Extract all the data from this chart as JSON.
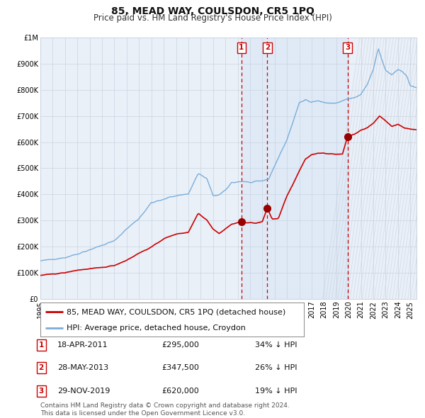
{
  "title": "85, MEAD WAY, COULSDON, CR5 1PQ",
  "subtitle": "Price paid vs. HM Land Registry's House Price Index (HPI)",
  "background_color": "#ffffff",
  "plot_bg_color": "#eaf0f8",
  "grid_color": "#c8d4e0",
  "ylim": [
    0,
    1000000
  ],
  "yticks": [
    0,
    100000,
    200000,
    300000,
    400000,
    500000,
    600000,
    700000,
    800000,
    900000,
    1000000
  ],
  "ytick_labels": [
    "£0",
    "£100K",
    "£200K",
    "£300K",
    "£400K",
    "£500K",
    "£600K",
    "£700K",
    "£800K",
    "£900K",
    "£1M"
  ],
  "xlim_start": 1995.0,
  "xlim_end": 2025.5,
  "xticks": [
    1995,
    1996,
    1997,
    1998,
    1999,
    2000,
    2001,
    2002,
    2003,
    2004,
    2005,
    2006,
    2007,
    2008,
    2009,
    2010,
    2011,
    2012,
    2013,
    2014,
    2015,
    2016,
    2017,
    2018,
    2019,
    2020,
    2021,
    2022,
    2023,
    2024,
    2025
  ],
  "red_line_color": "#cc0000",
  "blue_line_color": "#7aadda",
  "sale_marker_color": "#990000",
  "sale_marker_size": 7,
  "vline_color_red": "#cc0000",
  "shade_color": "#d6e6f5",
  "diag_color": "#c8d0dc",
  "sale_events": [
    {
      "label": "1",
      "year": 2011.3,
      "price": 295000,
      "hpi_pct": "34% ↓ HPI",
      "date_str": "18-APR-2011",
      "price_str": "£295,000"
    },
    {
      "label": "2",
      "year": 2013.4,
      "price": 347500,
      "hpi_pct": "26% ↓ HPI",
      "date_str": "28-MAY-2013",
      "price_str": "£347,500"
    },
    {
      "label": "3",
      "year": 2019.9,
      "price": 620000,
      "hpi_pct": "19% ↓ HPI",
      "date_str": "29-NOV-2019",
      "price_str": "£620,000"
    }
  ],
  "legend_label_red": "85, MEAD WAY, COULSDON, CR5 1PQ (detached house)",
  "legend_label_blue": "HPI: Average price, detached house, Croydon",
  "footnote": "Contains HM Land Registry data © Crown copyright and database right 2024.\nThis data is licensed under the Open Government Licence v3.0.",
  "title_fontsize": 10,
  "subtitle_fontsize": 8.5,
  "tick_fontsize": 7,
  "legend_fontsize": 8,
  "table_fontsize": 8,
  "footnote_fontsize": 6.5
}
